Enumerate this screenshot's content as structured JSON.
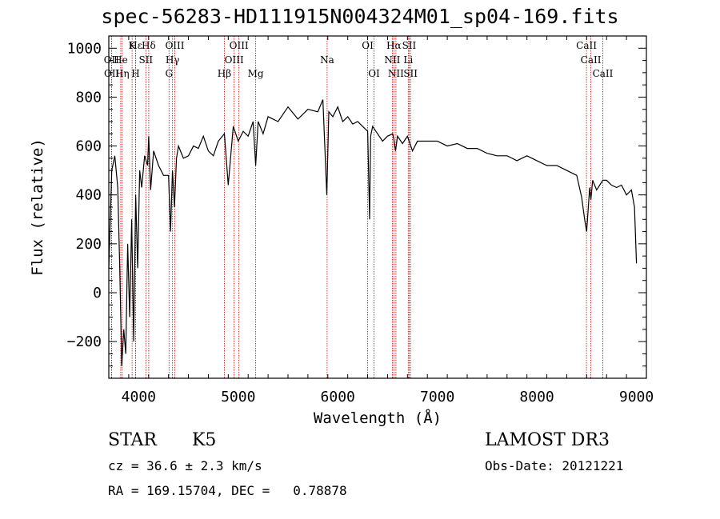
{
  "chart_data": {
    "type": "line",
    "title": "spec-56283-HD111915N004324M01_sp04-169.fits",
    "xlabel": "Wavelength (Å)",
    "ylabel": "Flux (relative)",
    "xlim": [
      3700,
      9100
    ],
    "ylim": [
      -350,
      1050
    ],
    "xticks": [
      4000,
      5000,
      6000,
      7000,
      8000,
      9000
    ],
    "xtick_labels": [
      "4000",
      "5000",
      "6000",
      "7000",
      "8000",
      "9000"
    ],
    "yticks": [
      -200,
      0,
      200,
      400,
      600,
      800,
      1000
    ],
    "ytick_labels": [
      "−200",
      "0",
      "200",
      "400",
      "600",
      "800",
      "1000"
    ],
    "series": [
      {
        "name": "flux",
        "x": [
          3700,
          3730,
          3760,
          3790,
          3810,
          3830,
          3850,
          3870,
          3890,
          3910,
          3930,
          3950,
          3970,
          3990,
          4010,
          4030,
          4060,
          4090,
          4101,
          4120,
          4150,
          4200,
          4250,
          4300,
          4320,
          4340,
          4360,
          4380,
          4400,
          4450,
          4500,
          4550,
          4600,
          4650,
          4700,
          4750,
          4800,
          4861,
          4900,
          4950,
          5000,
          5050,
          5100,
          5150,
          5175,
          5200,
          5250,
          5300,
          5400,
          5500,
          5600,
          5700,
          5800,
          5850,
          5890,
          5910,
          5950,
          6000,
          6050,
          6100,
          6150,
          6200,
          6250,
          6300,
          6320,
          6330,
          6350,
          6400,
          6450,
          6500,
          6550,
          6563,
          6580,
          6600,
          6650,
          6700,
          6750,
          6800,
          6900,
          7000,
          7100,
          7200,
          7300,
          7400,
          7500,
          7600,
          7700,
          7800,
          7900,
          8000,
          8100,
          8200,
          8300,
          8400,
          8450,
          8480,
          8500,
          8530,
          8542,
          8560,
          8600,
          8662,
          8700,
          8750,
          8800,
          8850,
          8900,
          8950,
          8980,
          9000
        ],
        "y": [
          100,
          500,
          560,
          430,
          100,
          -300,
          -150,
          -250,
          200,
          -100,
          300,
          -200,
          400,
          100,
          500,
          430,
          560,
          520,
          640,
          420,
          580,
          520,
          480,
          480,
          250,
          500,
          350,
          550,
          600,
          550,
          560,
          600,
          590,
          640,
          580,
          560,
          620,
          650,
          440,
          680,
          620,
          660,
          640,
          700,
          520,
          700,
          650,
          720,
          700,
          760,
          710,
          750,
          740,
          790,
          400,
          740,
          720,
          760,
          700,
          720,
          690,
          700,
          680,
          660,
          300,
          640,
          680,
          650,
          620,
          640,
          650,
          630,
          580,
          640,
          610,
          640,
          580,
          620,
          620,
          620,
          600,
          610,
          590,
          590,
          570,
          560,
          560,
          540,
          560,
          540,
          520,
          520,
          500,
          480,
          390,
          300,
          250,
          430,
          380,
          460,
          420,
          460,
          460,
          440,
          430,
          440,
          400,
          420,
          350,
          120
        ]
      }
    ],
    "lines": [
      {
        "label": "Hε",
        "wavelength": 3970,
        "row": 0
      },
      {
        "label": "K",
        "wavelength": 3934,
        "row": 0
      },
      {
        "label": "Hδ",
        "wavelength": 4101,
        "row": 0
      },
      {
        "label": "OIII",
        "wavelength": 4363,
        "row": 0
      },
      {
        "label": "OIII",
        "wavelength": 5007,
        "row": 0
      },
      {
        "label": "OI",
        "wavelength": 6300,
        "row": 0
      },
      {
        "label": "Hα",
        "wavelength": 6563,
        "row": 0
      },
      {
        "label": "SII",
        "wavelength": 6717,
        "row": 0
      },
      {
        "label": "CaII",
        "wavelength": 8498,
        "row": 0
      },
      {
        "label": "OII",
        "wavelength": 3727,
        "row": 1
      },
      {
        "label": "He",
        "wavelength": 3820,
        "row": 1
      },
      {
        "label": "SII",
        "wavelength": 4072,
        "row": 1
      },
      {
        "label": "Hγ",
        "wavelength": 4340,
        "row": 1
      },
      {
        "label": "OIII",
        "wavelength": 4959,
        "row": 1
      },
      {
        "label": "Na",
        "wavelength": 5893,
        "row": 1
      },
      {
        "label": "NII",
        "wavelength": 6548,
        "row": 1
      },
      {
        "label": "Li",
        "wavelength": 6708,
        "row": 1
      },
      {
        "label": "CaII",
        "wavelength": 8542,
        "row": 1
      },
      {
        "label": "OII",
        "wavelength": 3729,
        "row": 2
      },
      {
        "label": "Hη",
        "wavelength": 3835,
        "row": 2
      },
      {
        "label": "H",
        "wavelength": 3969,
        "row": 2
      },
      {
        "label": "G",
        "wavelength": 4305,
        "row": 2
      },
      {
        "label": "Hβ",
        "wavelength": 4861,
        "row": 2
      },
      {
        "label": "Mg",
        "wavelength": 5175,
        "row": 2
      },
      {
        "label": "OI",
        "wavelength": 6364,
        "row": 2
      },
      {
        "label": "NII",
        "wavelength": 6584,
        "row": 2
      },
      {
        "label": "SII",
        "wavelength": 6731,
        "row": 2
      },
      {
        "label": "CaII",
        "wavelength": 8662,
        "row": 2
      }
    ],
    "colors": {
      "spectrum": "#000000",
      "line_marker": "#cc0000",
      "axis": "#000000"
    }
  },
  "info": {
    "class": "STAR",
    "subclass": "K5",
    "survey": "LAMOST DR3",
    "cz": "cz = 36.6 ± 2.3 km/s",
    "obs_date": "Obs-Date: 20121221",
    "radec": "RA = 169.15704, DEC =   0.78878"
  }
}
